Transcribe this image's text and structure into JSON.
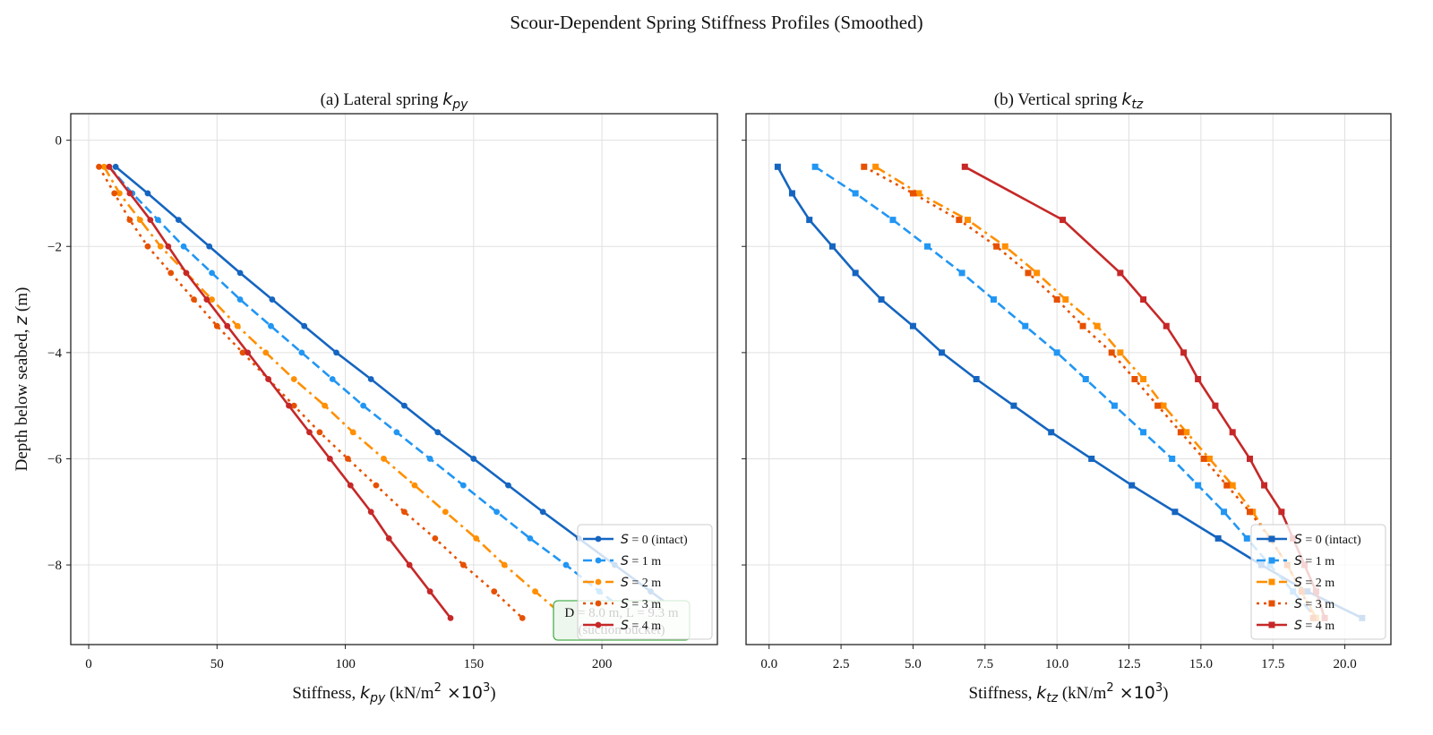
{
  "chart_data": [
    {
      "type": "line",
      "suptitle": "Scour-Dependent Spring Stiffness Profiles (Smoothed)",
      "title": "(a) Lateral spring k_py",
      "title_parts": {
        "prefix": "(a) Lateral spring ",
        "symbol": "k",
        "sub": "py"
      },
      "xlabel": "Stiffness, k_py (kN/m^2 ×10^3)",
      "xlabel_parts": {
        "prefix": "Stiffness, ",
        "symbol": "k",
        "sub": "py",
        "unit": " (kN/m",
        "sup": "2",
        "mult": " ×10",
        "sup2": "3",
        "close": ")"
      },
      "ylabel": "Depth below seabed, z (m)",
      "ylabel_parts": {
        "prefix": "Depth below seabed, ",
        "symbol": "z",
        "unit": " (m)"
      },
      "xlim": [
        -7,
        245
      ],
      "ylim": [
        -9.5,
        0.5
      ],
      "xticks": [
        0,
        50,
        100,
        150,
        200
      ],
      "xtick_labels": [
        "0",
        "50",
        "100",
        "150",
        "200"
      ],
      "yticks": [
        0,
        -2,
        -4,
        -6,
        -8
      ],
      "ytick_labels": [
        "0",
        "−2",
        "−4",
        "−6",
        "−8"
      ],
      "grid": true,
      "marker": "circle",
      "legend_position": "lower-right",
      "annotation": {
        "line1": "D = 8.0 m, L = 9.3 m",
        "line2": "(suction bucket)"
      },
      "depths": [
        -0.5,
        -1.0,
        -1.5,
        -2.0,
        -2.5,
        -3.0,
        -3.5,
        -4.0,
        -4.5,
        -5.0,
        -5.5,
        -6.0,
        -6.5,
        -7.0,
        -7.5,
        -8.0,
        -8.5,
        -9.0
      ],
      "series": [
        {
          "name": "S = 0 (intact)",
          "label_sym": "S",
          "label_rest": " = 0 (intact)",
          "color": "#1565c0",
          "dash": "solid",
          "values": [
            10.5,
            23,
            35,
            47,
            59,
            71.5,
            84,
            96.5,
            110,
            123,
            136,
            150,
            163.5,
            177,
            191,
            205,
            219,
            233
          ]
        },
        {
          "name": "S = 1 m",
          "label_sym": "S",
          "label_rest": " = 1 m",
          "color": "#2196f3",
          "dash": "dashed",
          "values": [
            8,
            17,
            27,
            37,
            48,
            59,
            71,
            83,
            95,
            107,
            120,
            133,
            146,
            159,
            172,
            186,
            199,
            213
          ]
        },
        {
          "name": "S = 2 m",
          "label_sym": "S",
          "label_rest": " = 2 m",
          "color": "#ff8f00",
          "dash": "dashdot",
          "values": [
            6,
            12,
            20,
            28,
            38,
            48,
            58,
            69,
            80,
            92,
            103,
            115,
            127,
            139,
            151,
            162,
            174,
            186
          ]
        },
        {
          "name": "S = 3 m",
          "label_sym": "S",
          "label_rest": " = 3 m",
          "color": "#e65100",
          "dash": "dotted",
          "values": [
            4,
            10,
            16,
            23,
            32,
            41,
            50,
            60,
            70,
            80,
            90,
            101,
            112,
            123,
            135,
            146,
            158,
            169
          ]
        },
        {
          "name": "S = 4 m",
          "label_sym": "S",
          "label_rest": " = 4 m",
          "color": "#c62828",
          "dash": "solid",
          "values": [
            8,
            16,
            24,
            31,
            38,
            46,
            54,
            62,
            70,
            78,
            86,
            94,
            102,
            110,
            117,
            125,
            133,
            141
          ]
        }
      ]
    },
    {
      "type": "line",
      "title": "(b) Vertical spring k_tz",
      "title_parts": {
        "prefix": "(b) Vertical spring ",
        "symbol": "k",
        "sub": "tz"
      },
      "xlabel": "Stiffness, k_tz (kN/m^2 ×10^3)",
      "xlabel_parts": {
        "prefix": "Stiffness, ",
        "symbol": "k",
        "sub": "tz",
        "unit": " (kN/m",
        "sup": "2",
        "mult": " ×10",
        "sup2": "3",
        "close": ")"
      },
      "xlim": [
        -0.8,
        21.6
      ],
      "ylim": [
        -9.5,
        0.5
      ],
      "xticks": [
        0,
        2.5,
        5,
        7.5,
        10,
        12.5,
        15,
        17.5,
        20
      ],
      "xtick_labels": [
        "0.0",
        "2.5",
        "5.0",
        "7.5",
        "10.0",
        "12.5",
        "15.0",
        "17.5",
        "20.0"
      ],
      "yticks": [
        0,
        -2,
        -4,
        -6,
        -8
      ],
      "grid": true,
      "marker": "square",
      "legend_position": "lower-right",
      "series": [
        {
          "name": "S = 0 (intact)",
          "label_sym": "S",
          "label_rest": " = 0 (intact)",
          "color": "#1565c0",
          "dash": "solid",
          "depths": [
            -0.5,
            -1.0,
            -1.5,
            -2.0,
            -2.5,
            -3.0,
            -3.5,
            -4.0,
            -4.5,
            -5.0,
            -5.5,
            -6.0,
            -6.5,
            -7.0,
            -7.5,
            -8.0,
            -8.5,
            -9.0
          ],
          "values": [
            0.3,
            0.8,
            1.4,
            2.2,
            3.0,
            3.9,
            5.0,
            6.0,
            7.2,
            8.5,
            9.8,
            11.2,
            12.6,
            14.1,
            15.6,
            17.1,
            18.7,
            20.6
          ]
        },
        {
          "name": "S = 1 m",
          "label_sym": "S",
          "label_rest": " = 1 m",
          "color": "#2196f3",
          "dash": "dashed",
          "depths": [
            -0.5,
            -1.0,
            -1.5,
            -2.0,
            -2.5,
            -3.0,
            -3.5,
            -4.0,
            -4.5,
            -5.0,
            -5.5,
            -6.0,
            -6.5,
            -7.0,
            -7.5,
            -8.0,
            -8.5,
            -9.0
          ],
          "values": [
            1.6,
            3.0,
            4.3,
            5.5,
            6.7,
            7.8,
            8.9,
            10.0,
            11.0,
            12.0,
            13.0,
            14.0,
            14.9,
            15.8,
            16.6,
            17.4,
            18.2,
            19.0
          ]
        },
        {
          "name": "S = 2 m",
          "label_sym": "S",
          "label_rest": " = 2 m",
          "color": "#ff8f00",
          "dash": "dashdot",
          "depths": [
            -0.5,
            -1.0,
            -1.5,
            -2.0,
            -2.5,
            -3.0,
            -3.5,
            -4.0,
            -4.5,
            -5.0,
            -5.5,
            -6.0,
            -6.5,
            -7.0,
            -7.5,
            -8.0,
            -8.5,
            -9.0
          ],
          "values": [
            3.7,
            5.2,
            6.9,
            8.2,
            9.3,
            10.3,
            11.4,
            12.2,
            13.0,
            13.7,
            14.5,
            15.3,
            16.1,
            16.8,
            17.4,
            18.0,
            18.5,
            19.0
          ]
        },
        {
          "name": "S = 3 m",
          "label_sym": "S",
          "label_rest": " = 3 m",
          "color": "#e65100",
          "dash": "dotted",
          "depths": [
            -0.5,
            -1.0,
            -1.5,
            -2.0,
            -2.5,
            -3.0,
            -3.5,
            -4.0,
            -4.5,
            -5.0,
            -5.5,
            -6.0,
            -6.5,
            -7.0,
            -7.5,
            -8.0,
            -8.5,
            -9.0
          ],
          "values": [
            3.3,
            5.0,
            6.6,
            7.9,
            9.0,
            10.0,
            10.9,
            11.9,
            12.7,
            13.5,
            14.3,
            15.1,
            15.9,
            16.7,
            17.4,
            18.0,
            18.5,
            18.9
          ]
        },
        {
          "name": "S = 4 m",
          "label_sym": "S",
          "label_rest": " = 4 m",
          "color": "#c62828",
          "dash": "solid",
          "depths": [
            -0.5,
            -1.5,
            -2.5,
            -3.0,
            -3.5,
            -4.0,
            -4.5,
            -5.0,
            -5.5,
            -6.0,
            -6.5,
            -7.0,
            -7.5,
            -8.0,
            -8.5,
            -9.0
          ],
          "values": [
            6.8,
            10.2,
            12.2,
            13.0,
            13.8,
            14.4,
            14.9,
            15.5,
            16.1,
            16.7,
            17.2,
            17.8,
            18.2,
            18.6,
            19.0,
            19.3
          ]
        }
      ]
    }
  ]
}
